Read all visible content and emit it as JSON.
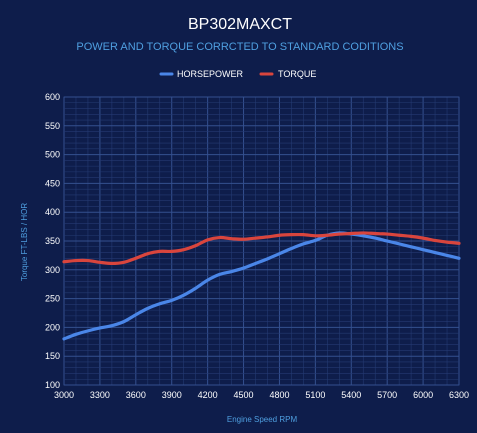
{
  "chart_data": {
    "type": "line",
    "title": "BP302MAXCT",
    "subtitle": "POWER AND TORQUE CORRCTED TO STANDARD CODITIONS",
    "xlabel": "Engine Speed RPM",
    "ylabel": "Torque FT-LBS / HOR",
    "xlim": [
      3000,
      6300
    ],
    "ylim": [
      100,
      600
    ],
    "x_ticks": [
      "3000",
      "3300",
      "3600",
      "3900",
      "4200",
      "4500",
      "4800",
      "5100",
      "5400",
      "5700",
      "6000",
      "6300"
    ],
    "y_ticks": [
      "100",
      "150",
      "200",
      "250",
      "300",
      "350",
      "400",
      "450",
      "500",
      "550",
      "600"
    ],
    "grid": true,
    "legend_position": "top",
    "series": [
      {
        "name": "HORSEPOWER",
        "color": "#4a86e8",
        "x": [
          3000,
          3100,
          3200,
          3300,
          3400,
          3500,
          3600,
          3700,
          3800,
          3900,
          4000,
          4100,
          4200,
          4300,
          4400,
          4500,
          4600,
          4700,
          4800,
          4900,
          5000,
          5100,
          5200,
          5300,
          5400,
          5500,
          5600,
          5700,
          5800,
          5900,
          6000,
          6100,
          6200,
          6300
        ],
        "values": [
          180,
          188,
          194,
          199,
          203,
          210,
          222,
          233,
          241,
          247,
          256,
          268,
          282,
          292,
          297,
          303,
          311,
          319,
          328,
          337,
          345,
          351,
          360,
          364,
          362,
          359,
          355,
          350,
          345,
          340,
          335,
          330,
          325,
          320
        ]
      },
      {
        "name": "TORQUE",
        "color": "#d9453d",
        "x": [
          3000,
          3100,
          3200,
          3300,
          3400,
          3500,
          3600,
          3700,
          3800,
          3900,
          4000,
          4100,
          4200,
          4300,
          4400,
          4500,
          4600,
          4700,
          4800,
          4900,
          5000,
          5100,
          5200,
          5300,
          5400,
          5500,
          5600,
          5700,
          5800,
          5900,
          6000,
          6100,
          6200,
          6300
        ],
        "values": [
          314,
          316,
          316,
          313,
          311,
          313,
          320,
          328,
          332,
          332,
          335,
          342,
          352,
          356,
          354,
          353,
          355,
          357,
          360,
          361,
          361,
          359,
          360,
          362,
          363,
          364,
          363,
          362,
          360,
          358,
          355,
          351,
          348,
          346
        ]
      }
    ]
  }
}
